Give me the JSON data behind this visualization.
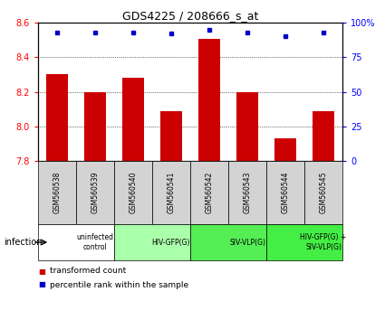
{
  "title": "GDS4225 / 208666_s_at",
  "samples": [
    "GSM560538",
    "GSM560539",
    "GSM560540",
    "GSM560541",
    "GSM560542",
    "GSM560543",
    "GSM560544",
    "GSM560545"
  ],
  "red_values": [
    8.3,
    8.2,
    8.28,
    8.09,
    8.505,
    8.2,
    7.93,
    8.09
  ],
  "blue_values": [
    93,
    93,
    93,
    92,
    95,
    93,
    90,
    93
  ],
  "ylim_left": [
    7.8,
    8.6
  ],
  "ylim_right": [
    0,
    100
  ],
  "yticks_left": [
    7.8,
    8.0,
    8.2,
    8.4,
    8.6
  ],
  "yticks_right": [
    0,
    25,
    50,
    75,
    100
  ],
  "groups": [
    {
      "label": "uninfected\ncontrol",
      "start": 0,
      "end": 2,
      "color": "#ffffff"
    },
    {
      "label": "HIV-GFP(G)",
      "start": 2,
      "end": 4,
      "color": "#aaffaa"
    },
    {
      "label": "SIV-VLP(G)",
      "start": 4,
      "end": 6,
      "color": "#55ee55"
    },
    {
      "label": "HIV-GFP(G) +\nSIV-VLP(G)",
      "start": 6,
      "end": 8,
      "color": "#44ee44"
    }
  ],
  "bar_color": "#cc0000",
  "dot_color": "#0000cc",
  "grid_color": "#000000",
  "sample_bg_color": "#d3d3d3",
  "infection_label": "infection",
  "legend_red": "transformed count",
  "legend_blue": "percentile rank within the sample",
  "fig_width": 4.25,
  "fig_height": 3.54,
  "dpi": 100
}
